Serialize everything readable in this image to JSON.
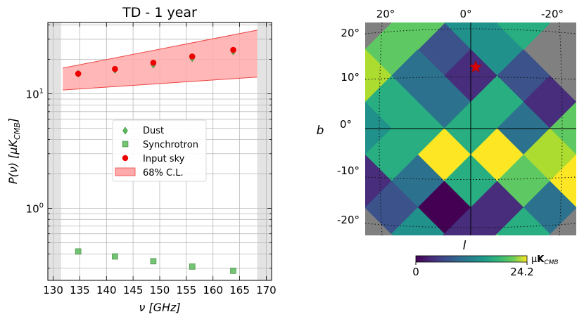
{
  "chart_data": [
    {
      "type": "scatter",
      "title": "TD - 1 year",
      "xlabel": "ν [GHz]",
      "ylabel": "P(ν) [μK_CMB]",
      "ylabel_parts": {
        "main": "P(ν) [μK",
        "sub": "CMB",
        "close": "]"
      },
      "xlim": [
        129,
        171
      ],
      "ylim": [
        0.235,
        42
      ],
      "yscale": "log",
      "grid": true,
      "xticks": [
        130,
        135,
        140,
        145,
        150,
        155,
        160,
        165,
        170
      ],
      "yticks": [
        {
          "value": 1,
          "base": "10",
          "exp": "0"
        },
        {
          "value": 10,
          "base": "10",
          "exp": "1"
        }
      ],
      "shaded_regions": [
        [
          129,
          131.5
        ],
        [
          168.3,
          171
        ]
      ],
      "legend_position": "center",
      "series": [
        {
          "name": "Dust",
          "marker": "diamond",
          "color": "#5cb85c",
          "x": [
            134.7,
            141.6,
            148.8,
            156.1,
            163.8
          ],
          "y": [
            15.0,
            16.2,
            18.0,
            20.5,
            23.5
          ]
        },
        {
          "name": "Synchrotron",
          "marker": "square",
          "color": "#5cb85c",
          "x": [
            134.7,
            141.6,
            148.8,
            156.1,
            163.8
          ],
          "y": [
            0.42,
            0.38,
            0.345,
            0.31,
            0.285
          ]
        },
        {
          "name": "Input sky",
          "marker": "circle",
          "color": "#ee0000",
          "x": [
            134.7,
            141.6,
            148.8,
            156.1,
            163.8
          ],
          "y": [
            15.0,
            16.5,
            18.7,
            21.2,
            24.2
          ]
        },
        {
          "name": "68% C.L.",
          "marker": "band",
          "color": "#ffaaaa",
          "x": [
            131.8,
            168.3
          ],
          "lower": [
            10.8,
            14.0
          ],
          "upper": [
            16.8,
            36.0
          ]
        }
      ]
    },
    {
      "type": "heatmap",
      "xlabel": "l",
      "ylabel": "b",
      "xticks": [
        "20°",
        "0°",
        "-20°"
      ],
      "yticks": [
        "20°",
        "10°",
        "0°",
        "-10°",
        "-20°"
      ],
      "colorbar": {
        "min": "0",
        "max": "24.2",
        "unit_main": "μ",
        "unit_bold": "K",
        "unit_sub": "CMB"
      },
      "colormap": "viridis",
      "masked_color": "#808080",
      "marker": {
        "symbol": "star",
        "color": "#dd0000",
        "l": -1,
        "b": 12.5
      }
    }
  ]
}
